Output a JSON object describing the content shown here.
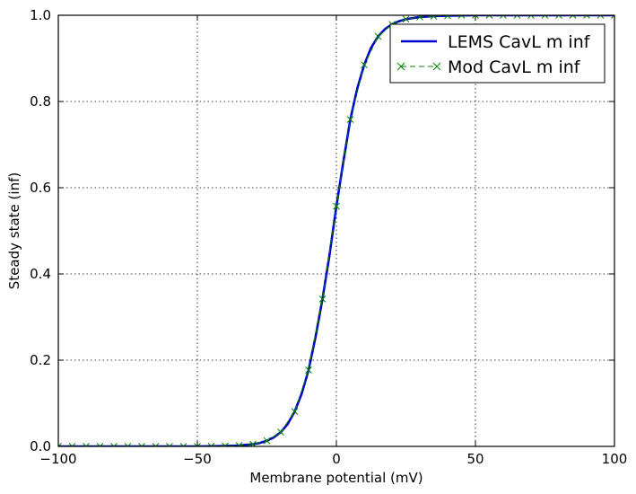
{
  "chart_data": {
    "type": "line",
    "title": "",
    "xlabel": "Membrane potential (mV)",
    "ylabel": "Steady state (inf)",
    "xlim": [
      -100,
      100
    ],
    "ylim": [
      0.0,
      1.0
    ],
    "xticks": [
      -100,
      -50,
      0,
      50,
      100
    ],
    "xtick_labels": [
      "−100",
      "−50",
      "0",
      "50",
      "100"
    ],
    "yticks": [
      0.0,
      0.2,
      0.4,
      0.6,
      0.8,
      1.0
    ],
    "ytick_labels": [
      "0.0",
      "0.2",
      "0.4",
      "0.6",
      "0.8",
      "1.0"
    ],
    "grid": true,
    "legend_position": "top-right",
    "series": [
      {
        "name": "LEMS CavL m inf",
        "style": "solid-line",
        "color": "#0000cc",
        "x": [
          -100,
          -90,
          -80,
          -70,
          -60,
          -50,
          -45,
          -40,
          -35,
          -30,
          -27.5,
          -25,
          -22.5,
          -20,
          -17.5,
          -15,
          -12.5,
          -10,
          -7.5,
          -5,
          -2.5,
          0,
          2.5,
          5,
          7.5,
          10,
          12.5,
          15,
          17.5,
          20,
          22.5,
          25,
          30,
          35,
          40,
          50,
          60,
          70,
          80,
          90,
          100
        ],
        "y": [
          0.0,
          0.0,
          0.0,
          0.0,
          0.0,
          0.0,
          0.0005,
          0.001,
          0.002,
          0.005,
          0.008,
          0.013,
          0.021,
          0.033,
          0.052,
          0.081,
          0.122,
          0.177,
          0.254,
          0.342,
          0.443,
          0.557,
          0.66,
          0.758,
          0.83,
          0.885,
          0.925,
          0.951,
          0.968,
          0.979,
          0.986,
          0.991,
          0.996,
          0.998,
          0.999,
          1.0,
          1.0,
          1.0,
          1.0,
          1.0,
          1.0
        ]
      },
      {
        "name": "Mod CavL m inf",
        "style": "dashed-x-markers",
        "color": "#008000",
        "x": [
          -100,
          -95,
          -90,
          -85,
          -80,
          -75,
          -70,
          -65,
          -60,
          -55,
          -50,
          -45,
          -40,
          -35,
          -30,
          -25,
          -20,
          -15,
          -10,
          -5,
          0,
          5,
          10,
          15,
          20,
          25,
          30,
          35,
          40,
          45,
          50,
          55,
          60,
          65,
          70,
          75,
          80,
          85,
          90,
          95,
          100
        ],
        "y": [
          0.0,
          0.0,
          0.0,
          0.0,
          0.0,
          0.0,
          0.0,
          0.0,
          0.0,
          0.0,
          0.0,
          0.0005,
          0.001,
          0.002,
          0.005,
          0.013,
          0.033,
          0.081,
          0.177,
          0.342,
          0.557,
          0.758,
          0.885,
          0.951,
          0.979,
          0.991,
          0.996,
          0.998,
          0.999,
          1.0,
          1.0,
          1.0,
          1.0,
          1.0,
          1.0,
          1.0,
          1.0,
          1.0,
          1.0,
          1.0,
          1.0
        ]
      }
    ]
  }
}
